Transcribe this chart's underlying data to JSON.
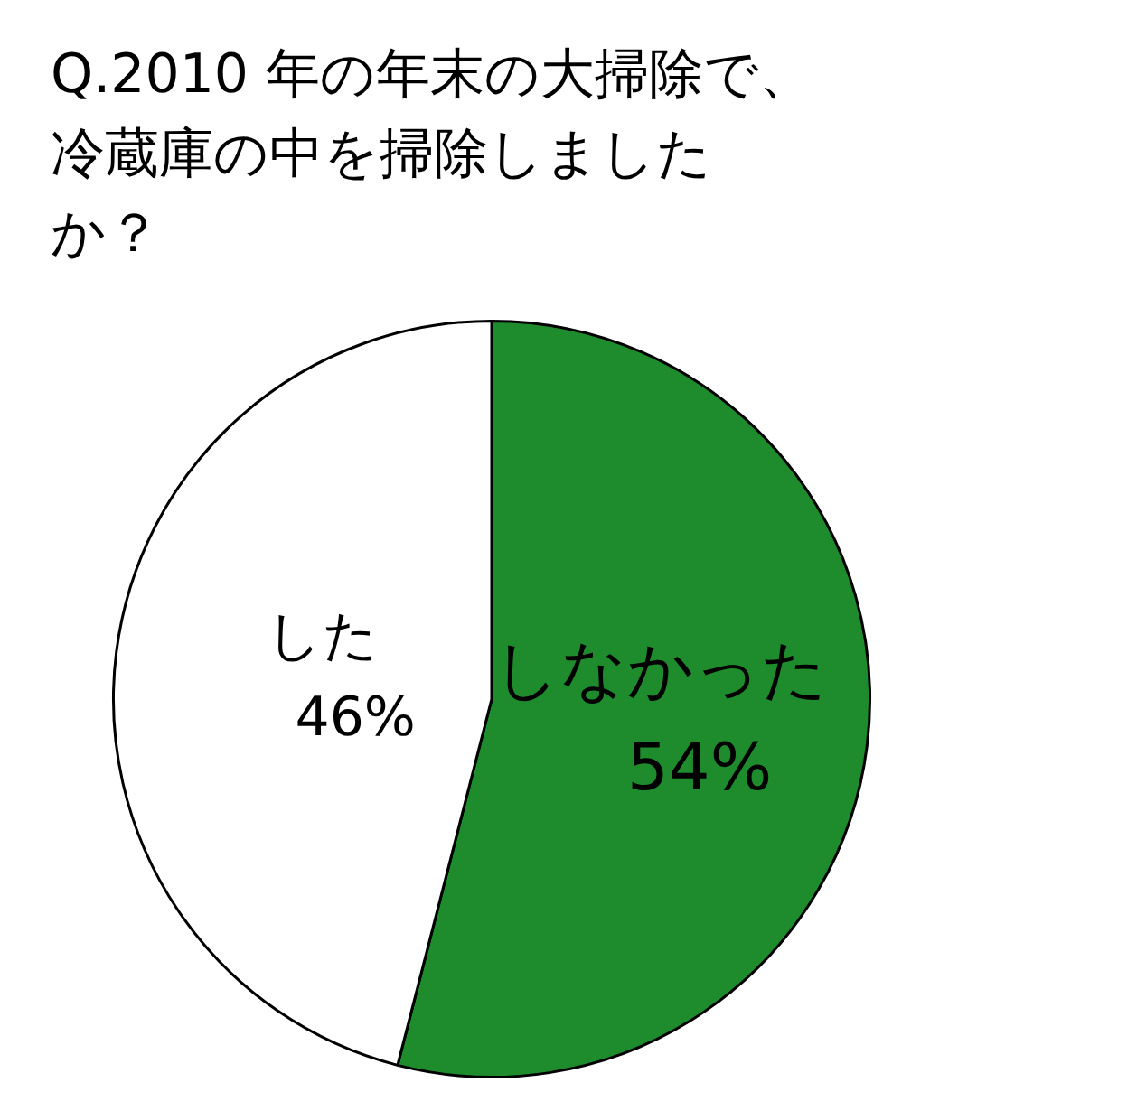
{
  "chart_data": {
    "type": "pie",
    "title": "Q.2010 年の年末の大掃除で、冷蔵庫の中を掃除しましたか？",
    "categories": [
      "しなかった",
      "した"
    ],
    "values": [
      54,
      46
    ],
    "value_labels": [
      "54%",
      "46%"
    ],
    "colors": [
      "#1e8c2d",
      "#ffffff"
    ],
    "legend": false
  }
}
